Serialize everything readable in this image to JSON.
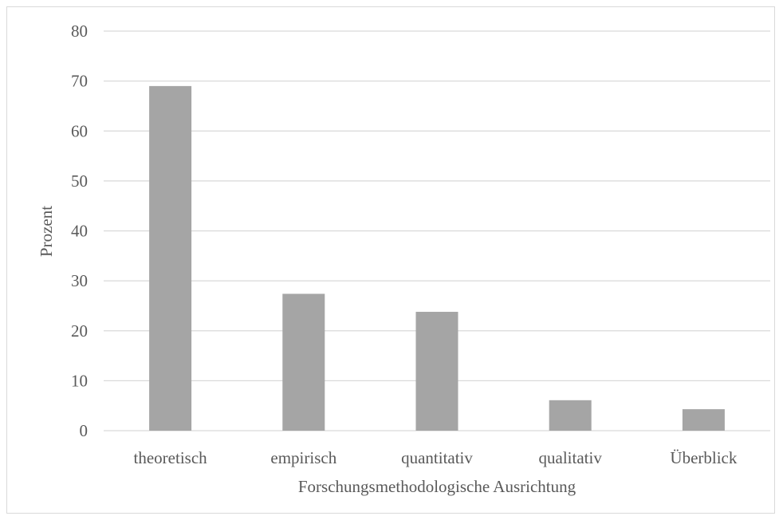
{
  "chart_data": {
    "type": "bar",
    "categories": [
      "theoretisch",
      "empirisch",
      "quantitativ",
      "qualitativ",
      "Überblick"
    ],
    "values": [
      69,
      27.4,
      23.8,
      6.1,
      4.3
    ],
    "title": "",
    "xlabel": "Forschungsmethodologische Ausrichtung",
    "ylabel": "Prozent",
    "ylim": [
      0,
      80
    ],
    "yticks": [
      0,
      10,
      20,
      30,
      40,
      50,
      60,
      70,
      80
    ],
    "grid": true,
    "legend": "none",
    "bar_color": "#a5a5a5",
    "grid_color": "#d9d9d9"
  }
}
